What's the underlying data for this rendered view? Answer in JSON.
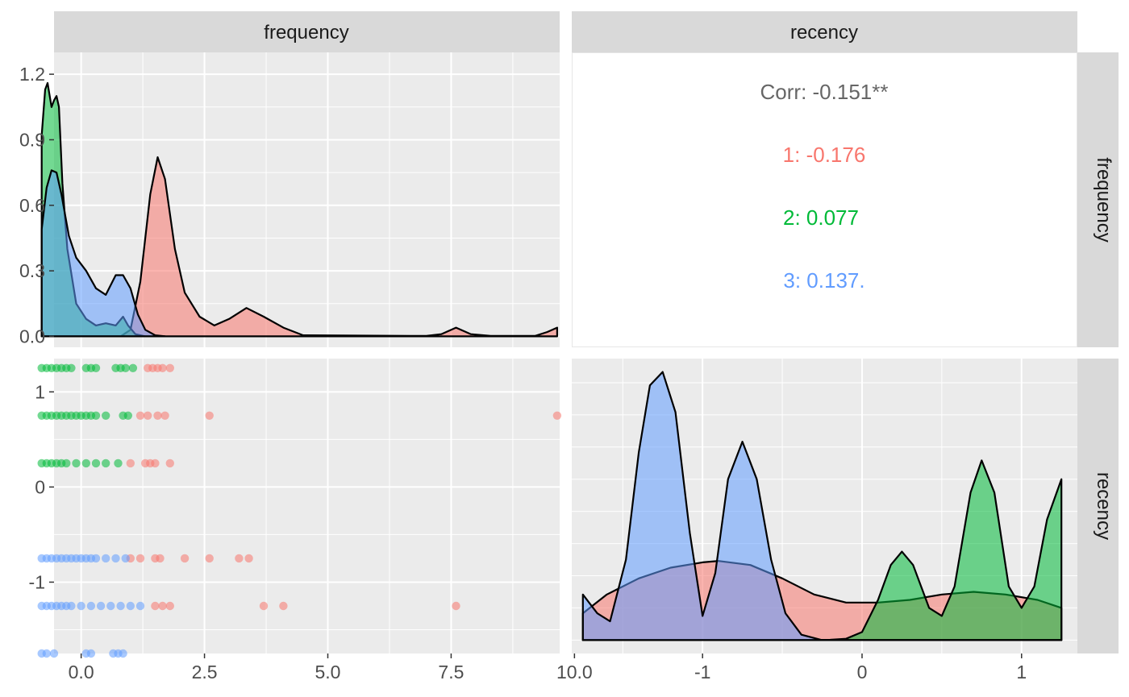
{
  "facet_labels": {
    "top": [
      "frequency",
      "recency"
    ],
    "right": [
      "frequency",
      "recency"
    ]
  },
  "colors": {
    "cluster_1": "#F8766D",
    "cluster_2": "#00BA38",
    "cluster_3": "#619CFF",
    "panel_bg": "#EBEBEB",
    "strip_bg": "#D9D9D9",
    "grid": "#FFFFFF",
    "corr_text": "#666666"
  },
  "chart_data": [
    {
      "panel": "frequency-density",
      "type": "area",
      "xlim": [
        -0.55,
        9.7
      ],
      "ylim": [
        -0.05,
        1.3
      ],
      "x_ticks": [
        0.0,
        2.5,
        5.0,
        7.5,
        10.0
      ],
      "y_ticks": [
        0.0,
        0.3,
        0.6,
        0.9,
        1.2
      ],
      "x_tick_labels": [
        "0.0",
        "2.5",
        "5.0",
        "7.5",
        "10.0"
      ],
      "y_tick_labels": [
        "0.0",
        "0.3",
        "0.6",
        "0.9",
        "1.2"
      ],
      "series": [
        {
          "name": "1",
          "color": "#F8766D",
          "points": [
            [
              -0.8,
              0
            ],
            [
              0.8,
              0
            ],
            [
              1.0,
              0.03
            ],
            [
              1.2,
              0.25
            ],
            [
              1.4,
              0.65
            ],
            [
              1.55,
              0.82
            ],
            [
              1.7,
              0.72
            ],
            [
              1.9,
              0.4
            ],
            [
              2.1,
              0.2
            ],
            [
              2.4,
              0.09
            ],
            [
              2.7,
              0.05
            ],
            [
              3.0,
              0.08
            ],
            [
              3.35,
              0.13
            ],
            [
              3.7,
              0.09
            ],
            [
              4.1,
              0.04
            ],
            [
              4.5,
              0.005
            ],
            [
              7.0,
              0.002
            ],
            [
              7.3,
              0.01
            ],
            [
              7.6,
              0.04
            ],
            [
              7.9,
              0.01
            ],
            [
              8.3,
              0.002
            ],
            [
              9.2,
              0.002
            ],
            [
              9.45,
              0.02
            ],
            [
              9.65,
              0.04
            ],
            [
              9.65,
              0
            ]
          ]
        },
        {
          "name": "2",
          "color": "#00BA38",
          "points": [
            [
              -0.8,
              0
            ],
            [
              -0.8,
              0.92
            ],
            [
              -0.73,
              1.13
            ],
            [
              -0.68,
              1.16
            ],
            [
              -0.6,
              1.05
            ],
            [
              -0.55,
              1.08
            ],
            [
              -0.5,
              1.1
            ],
            [
              -0.45,
              1.05
            ],
            [
              -0.38,
              0.7
            ],
            [
              -0.28,
              0.4
            ],
            [
              -0.1,
              0.15
            ],
            [
              0.1,
              0.08
            ],
            [
              0.3,
              0.05
            ],
            [
              0.5,
              0.06
            ],
            [
              0.7,
              0.05
            ],
            [
              0.85,
              0.09
            ],
            [
              0.95,
              0.05
            ],
            [
              1.1,
              0.01
            ],
            [
              1.3,
              0
            ],
            [
              1.3,
              0
            ]
          ]
        },
        {
          "name": "3",
          "color": "#619CFF",
          "points": [
            [
              -0.8,
              0
            ],
            [
              -0.8,
              0.49
            ],
            [
              -0.7,
              0.68
            ],
            [
              -0.6,
              0.76
            ],
            [
              -0.5,
              0.75
            ],
            [
              -0.4,
              0.65
            ],
            [
              -0.25,
              0.46
            ],
            [
              -0.1,
              0.36
            ],
            [
              0.1,
              0.3
            ],
            [
              0.3,
              0.22
            ],
            [
              0.5,
              0.19
            ],
            [
              0.7,
              0.28
            ],
            [
              0.85,
              0.28
            ],
            [
              1.0,
              0.22
            ],
            [
              1.15,
              0.1
            ],
            [
              1.3,
              0.03
            ],
            [
              1.5,
              0.005
            ],
            [
              1.7,
              0
            ]
          ]
        }
      ]
    },
    {
      "panel": "correlation",
      "type": "table",
      "overall": "Corr: -0.151**",
      "groups": [
        {
          "label": "1: -0.176",
          "color": "#F8766D"
        },
        {
          "label": "2: 0.077",
          "color": "#00BA38"
        },
        {
          "label": "3: 0.137.",
          "color": "#619CFF"
        }
      ]
    },
    {
      "panel": "frequency-vs-recency",
      "type": "scatter",
      "xlim": [
        -0.55,
        9.7
      ],
      "ylim": [
        -1.75,
        1.35
      ],
      "x_ticks": [
        0.0,
        2.5,
        5.0,
        7.5,
        10.0
      ],
      "y_ticks": [
        -1,
        0,
        1
      ],
      "x_tick_labels": [
        "0.0",
        "2.5",
        "5.0",
        "7.5",
        "10.0"
      ],
      "y_tick_labels": [
        "-1",
        "0",
        "1"
      ],
      "series": [
        {
          "name": "1",
          "color": "#F8766D",
          "points": [
            [
              1.35,
              1.25
            ],
            [
              1.45,
              1.25
            ],
            [
              1.55,
              1.25
            ],
            [
              1.65,
              1.25
            ],
            [
              1.8,
              1.25
            ],
            [
              1.2,
              0.75
            ],
            [
              1.35,
              0.75
            ],
            [
              1.55,
              0.75
            ],
            [
              1.7,
              0.75
            ],
            [
              2.6,
              0.75
            ],
            [
              9.65,
              0.75
            ],
            [
              1.0,
              0.25
            ],
            [
              1.3,
              0.25
            ],
            [
              1.4,
              0.25
            ],
            [
              1.5,
              0.25
            ],
            [
              1.8,
              0.25
            ],
            [
              1.0,
              -0.75
            ],
            [
              1.2,
              -0.75
            ],
            [
              1.5,
              -0.75
            ],
            [
              1.6,
              -0.75
            ],
            [
              2.1,
              -0.75
            ],
            [
              2.6,
              -0.75
            ],
            [
              3.2,
              -0.75
            ],
            [
              3.4,
              -0.75
            ],
            [
              1.5,
              -1.25
            ],
            [
              1.65,
              -1.25
            ],
            [
              1.8,
              -1.25
            ],
            [
              3.7,
              -1.25
            ],
            [
              4.1,
              -1.25
            ],
            [
              7.6,
              -1.25
            ]
          ]
        },
        {
          "name": "2",
          "color": "#00BA38",
          "points": [
            [
              -0.8,
              1.25
            ],
            [
              -0.7,
              1.25
            ],
            [
              -0.6,
              1.25
            ],
            [
              -0.5,
              1.25
            ],
            [
              -0.4,
              1.25
            ],
            [
              -0.3,
              1.25
            ],
            [
              -0.2,
              1.25
            ],
            [
              0.1,
              1.25
            ],
            [
              0.2,
              1.25
            ],
            [
              0.3,
              1.25
            ],
            [
              0.7,
              1.25
            ],
            [
              0.8,
              1.25
            ],
            [
              0.9,
              1.25
            ],
            [
              1.05,
              1.25
            ],
            [
              -0.8,
              0.75
            ],
            [
              -0.7,
              0.75
            ],
            [
              -0.6,
              0.75
            ],
            [
              -0.5,
              0.75
            ],
            [
              -0.4,
              0.75
            ],
            [
              -0.3,
              0.75
            ],
            [
              -0.2,
              0.75
            ],
            [
              -0.1,
              0.75
            ],
            [
              0.0,
              0.75
            ],
            [
              0.1,
              0.75
            ],
            [
              0.2,
              0.75
            ],
            [
              0.3,
              0.75
            ],
            [
              0.5,
              0.75
            ],
            [
              0.85,
              0.75
            ],
            [
              0.95,
              0.75
            ],
            [
              -0.8,
              0.25
            ],
            [
              -0.7,
              0.25
            ],
            [
              -0.6,
              0.25
            ],
            [
              -0.5,
              0.25
            ],
            [
              -0.4,
              0.25
            ],
            [
              -0.3,
              0.25
            ],
            [
              -0.1,
              0.25
            ],
            [
              0.1,
              0.25
            ],
            [
              0.3,
              0.25
            ],
            [
              0.5,
              0.25
            ],
            [
              0.75,
              0.25
            ]
          ]
        },
        {
          "name": "3",
          "color": "#619CFF",
          "points": [
            [
              -0.8,
              -0.75
            ],
            [
              -0.7,
              -0.75
            ],
            [
              -0.6,
              -0.75
            ],
            [
              -0.5,
              -0.75
            ],
            [
              -0.4,
              -0.75
            ],
            [
              -0.3,
              -0.75
            ],
            [
              -0.2,
              -0.75
            ],
            [
              -0.1,
              -0.75
            ],
            [
              0.0,
              -0.75
            ],
            [
              0.1,
              -0.75
            ],
            [
              0.2,
              -0.75
            ],
            [
              0.3,
              -0.75
            ],
            [
              0.5,
              -0.75
            ],
            [
              0.7,
              -0.75
            ],
            [
              0.9,
              -0.75
            ],
            [
              -0.8,
              -1.25
            ],
            [
              -0.7,
              -1.25
            ],
            [
              -0.6,
              -1.25
            ],
            [
              -0.5,
              -1.25
            ],
            [
              -0.4,
              -1.25
            ],
            [
              -0.3,
              -1.25
            ],
            [
              -0.2,
              -1.25
            ],
            [
              0.0,
              -1.25
            ],
            [
              0.2,
              -1.25
            ],
            [
              0.4,
              -1.25
            ],
            [
              0.6,
              -1.25
            ],
            [
              0.8,
              -1.25
            ],
            [
              1.0,
              -1.25
            ],
            [
              1.2,
              -1.25
            ],
            [
              -0.8,
              -1.75
            ],
            [
              -0.7,
              -1.75
            ],
            [
              -0.55,
              -1.75
            ],
            [
              0.1,
              -1.75
            ],
            [
              0.2,
              -1.75
            ],
            [
              0.65,
              -1.75
            ],
            [
              0.75,
              -1.75
            ],
            [
              0.85,
              -1.75
            ]
          ]
        }
      ]
    },
    {
      "panel": "recency-density",
      "type": "area",
      "xlim": [
        -1.82,
        1.35
      ],
      "ylim": [
        -0.05,
        1.05
      ],
      "x_ticks": [
        -1,
        0,
        1
      ],
      "x_tick_labels": [
        "-1",
        "0",
        "1"
      ],
      "series": [
        {
          "name": "1",
          "color": "#F8766D",
          "points": [
            [
              -1.75,
              0
            ],
            [
              -1.75,
              0.1
            ],
            [
              -1.6,
              0.17
            ],
            [
              -1.4,
              0.23
            ],
            [
              -1.2,
              0.27
            ],
            [
              -1.0,
              0.29
            ],
            [
              -0.9,
              0.295
            ],
            [
              -0.7,
              0.28
            ],
            [
              -0.5,
              0.23
            ],
            [
              -0.3,
              0.17
            ],
            [
              -0.1,
              0.14
            ],
            [
              0.1,
              0.14
            ],
            [
              0.3,
              0.15
            ],
            [
              0.5,
              0.17
            ],
            [
              0.7,
              0.18
            ],
            [
              0.9,
              0.17
            ],
            [
              1.1,
              0.15
            ],
            [
              1.25,
              0.12
            ],
            [
              1.25,
              0
            ]
          ]
        },
        {
          "name": "2",
          "color": "#00BA38",
          "points": [
            [
              -1.75,
              0
            ],
            [
              -0.4,
              0
            ],
            [
              -0.2,
              0.001
            ],
            [
              -0.1,
              0.005
            ],
            [
              0.0,
              0.03
            ],
            [
              0.1,
              0.15
            ],
            [
              0.18,
              0.28
            ],
            [
              0.25,
              0.33
            ],
            [
              0.32,
              0.28
            ],
            [
              0.42,
              0.12
            ],
            [
              0.5,
              0.09
            ],
            [
              0.58,
              0.2
            ],
            [
              0.68,
              0.55
            ],
            [
              0.75,
              0.67
            ],
            [
              0.83,
              0.55
            ],
            [
              0.92,
              0.2
            ],
            [
              1.0,
              0.12
            ],
            [
              1.08,
              0.2
            ],
            [
              1.16,
              0.45
            ],
            [
              1.25,
              0.6
            ],
            [
              1.25,
              0
            ]
          ]
        },
        {
          "name": "3",
          "color": "#619CFF",
          "points": [
            [
              -1.75,
              0
            ],
            [
              -1.75,
              0.17
            ],
            [
              -1.66,
              0.1
            ],
            [
              -1.58,
              0.07
            ],
            [
              -1.48,
              0.3
            ],
            [
              -1.4,
              0.7
            ],
            [
              -1.33,
              0.95
            ],
            [
              -1.25,
              1.0
            ],
            [
              -1.17,
              0.85
            ],
            [
              -1.08,
              0.4
            ],
            [
              -1.0,
              0.09
            ],
            [
              -0.92,
              0.25
            ],
            [
              -0.84,
              0.6
            ],
            [
              -0.75,
              0.74
            ],
            [
              -0.66,
              0.6
            ],
            [
              -0.57,
              0.3
            ],
            [
              -0.48,
              0.1
            ],
            [
              -0.38,
              0.02
            ],
            [
              -0.25,
              0
            ],
            [
              1.25,
              0
            ]
          ]
        }
      ]
    }
  ]
}
